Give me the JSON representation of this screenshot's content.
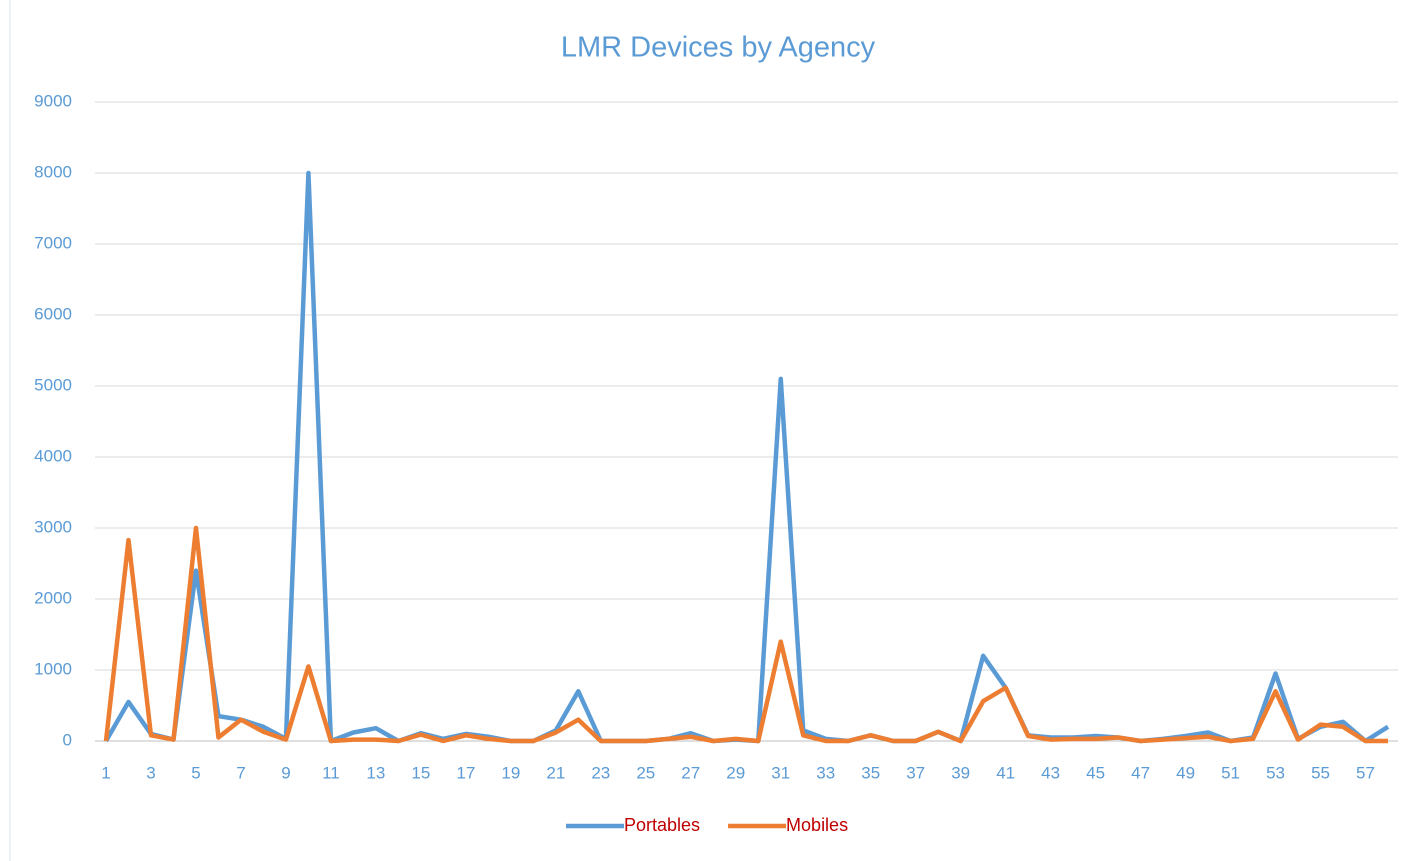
{
  "chart_data": {
    "type": "line",
    "title": "LMR Devices by Agency",
    "categories": [
      1,
      null,
      3,
      null,
      5,
      null,
      7,
      null,
      9,
      null,
      11,
      null,
      13,
      null,
      15,
      null,
      17,
      null,
      19,
      null,
      21,
      null,
      23,
      null,
      25,
      null,
      27,
      null,
      29,
      null,
      31,
      null,
      33,
      null,
      35,
      null,
      37,
      null,
      39,
      null,
      41,
      null,
      43,
      null,
      45,
      null,
      47,
      null,
      49,
      null,
      51,
      null,
      53,
      null,
      55,
      null,
      57,
      null
    ],
    "series": [
      {
        "name": "Portables",
        "color": "#5b9bd5",
        "values": [
          0,
          550,
          100,
          20,
          2400,
          350,
          300,
          200,
          30,
          8000,
          0,
          120,
          180,
          0,
          110,
          30,
          100,
          60,
          0,
          0,
          150,
          700,
          0,
          0,
          0,
          30,
          110,
          0,
          20,
          0,
          5100,
          150,
          30,
          0,
          80,
          0,
          0,
          130,
          0,
          1200,
          750,
          80,
          50,
          50,
          70,
          50,
          0,
          30,
          70,
          120,
          0,
          50,
          950,
          30,
          200,
          270,
          0,
          200
        ]
      },
      {
        "name": "Mobiles",
        "color": "#ed7d31",
        "values": [
          0,
          2830,
          80,
          20,
          3000,
          50,
          300,
          130,
          20,
          1050,
          0,
          20,
          20,
          0,
          90,
          0,
          80,
          30,
          0,
          0,
          120,
          300,
          0,
          0,
          0,
          30,
          60,
          0,
          30,
          0,
          1400,
          80,
          0,
          0,
          80,
          0,
          0,
          130,
          0,
          560,
          750,
          70,
          20,
          30,
          30,
          50,
          0,
          20,
          40,
          60,
          0,
          30,
          700,
          20,
          230,
          200,
          0,
          0
        ]
      }
    ],
    "ylim": [
      0,
      9000
    ],
    "yticks": [
      0,
      1000,
      2000,
      3000,
      4000,
      5000,
      6000,
      7000,
      8000,
      9000
    ],
    "grid": true,
    "legend": "bottom"
  }
}
